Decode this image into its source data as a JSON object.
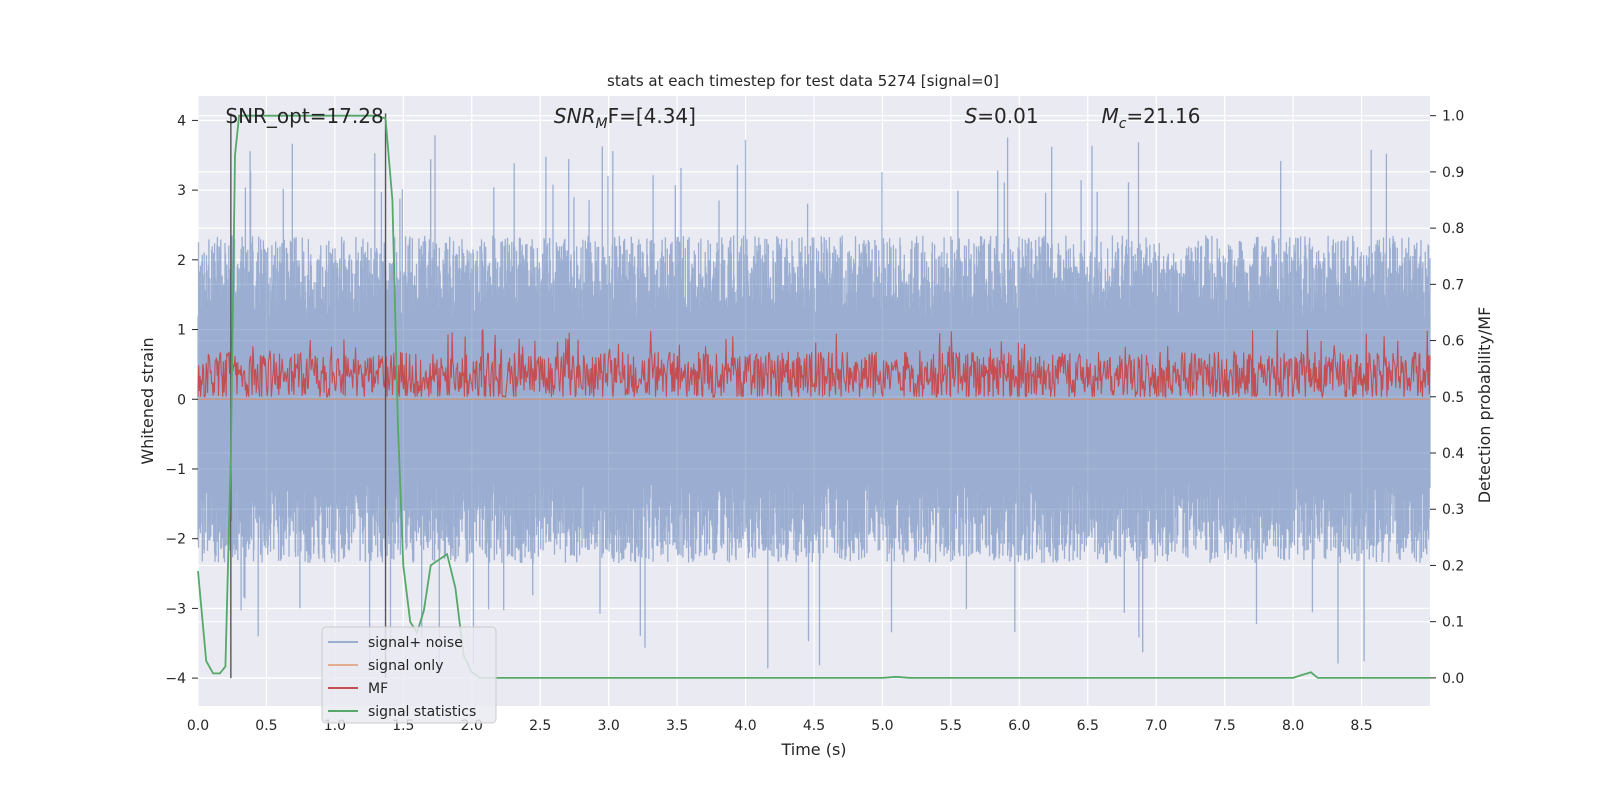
{
  "chart_data": {
    "type": "line",
    "title": "stats at each timestep for test data 5274 [signal=0]",
    "xlabel": "Time (s)",
    "ylabel_left": "Whitened strain",
    "ylabel_right": "Detection probability/MF",
    "xlim": [
      0,
      9.0
    ],
    "ylim_left": [
      -4.4,
      4.35
    ],
    "ylim_right": [
      -0.05,
      1.035
    ],
    "x_ticks": [
      "0.0",
      "0.5",
      "1.0",
      "1.5",
      "2.0",
      "2.5",
      "3.0",
      "3.5",
      "4.0",
      "4.5",
      "5.0",
      "5.5",
      "6.0",
      "6.5",
      "7.0",
      "7.5",
      "8.0",
      "8.5"
    ],
    "y_ticks_left": [
      "−4",
      "−3",
      "−2",
      "−1",
      "0",
      "1",
      "2",
      "3",
      "4"
    ],
    "y_ticks_right": [
      "0.0",
      "0.1",
      "0.2",
      "0.3",
      "0.4",
      "0.5",
      "0.6",
      "0.7",
      "0.8",
      "0.9",
      "1.0"
    ],
    "grid": true,
    "legend_position": "lower-left",
    "annotations": [
      {
        "text": "SNR_opt=17.28",
        "style": "plain"
      },
      {
        "text": "SNR_MF=[4.34]",
        "style": "math",
        "base": "SNR",
        "sub": "M",
        "rest": "F=[4.34]"
      },
      {
        "text": "S=0.01",
        "style": "math",
        "base": "S",
        "sub": "",
        "rest": "=0.01"
      },
      {
        "text": "M_c=21.16",
        "style": "math",
        "base": "M",
        "sub": "c",
        "rest": "=21.16"
      }
    ],
    "vertical_markers_x": [
      0.24,
      1.37
    ],
    "series": [
      {
        "name": "signal+ noise",
        "color": "#4c72b0",
        "axis": "left",
        "envelope_positive_typical": 2.3,
        "envelope_negative_typical": -2.3,
        "max_peak": 3.8,
        "min_peak": -4.0
      },
      {
        "name": "signal only",
        "color": "#dd8452",
        "axis": "left"
      },
      {
        "name": "MF",
        "color": "#c44e52",
        "axis": "right",
        "typical_low": 0.5,
        "typical_high": 0.58,
        "max_peak": 0.62
      },
      {
        "name": "signal statistics",
        "color": "#55a868",
        "axis": "right",
        "x": [
          0.0,
          0.06,
          0.11,
          0.16,
          0.2,
          0.24,
          0.27,
          0.3,
          0.4,
          0.6,
          0.8,
          1.0,
          1.2,
          1.3,
          1.37,
          1.42,
          1.46,
          1.5,
          1.55,
          1.6,
          1.65,
          1.7,
          1.76,
          1.82,
          1.88,
          1.94,
          2.0,
          2.06,
          2.12,
          3.0,
          4.0,
          5.0,
          5.1,
          5.2,
          6.0,
          7.0,
          8.0,
          8.05,
          8.13,
          8.18,
          8.5,
          9.0
        ],
        "y": [
          0.19,
          0.03,
          0.008,
          0.008,
          0.02,
          0.4,
          0.93,
          1.0,
          1.0,
          1.0,
          1.0,
          1.0,
          1.0,
          1.0,
          0.995,
          0.85,
          0.45,
          0.2,
          0.1,
          0.08,
          0.12,
          0.2,
          0.21,
          0.22,
          0.16,
          0.04,
          0.01,
          0.0,
          0.0,
          0.0,
          0.0,
          0.0,
          0.002,
          0.0,
          0.0,
          0.0,
          0.0,
          0.004,
          0.01,
          0.0,
          0.0,
          0.0
        ]
      }
    ]
  }
}
